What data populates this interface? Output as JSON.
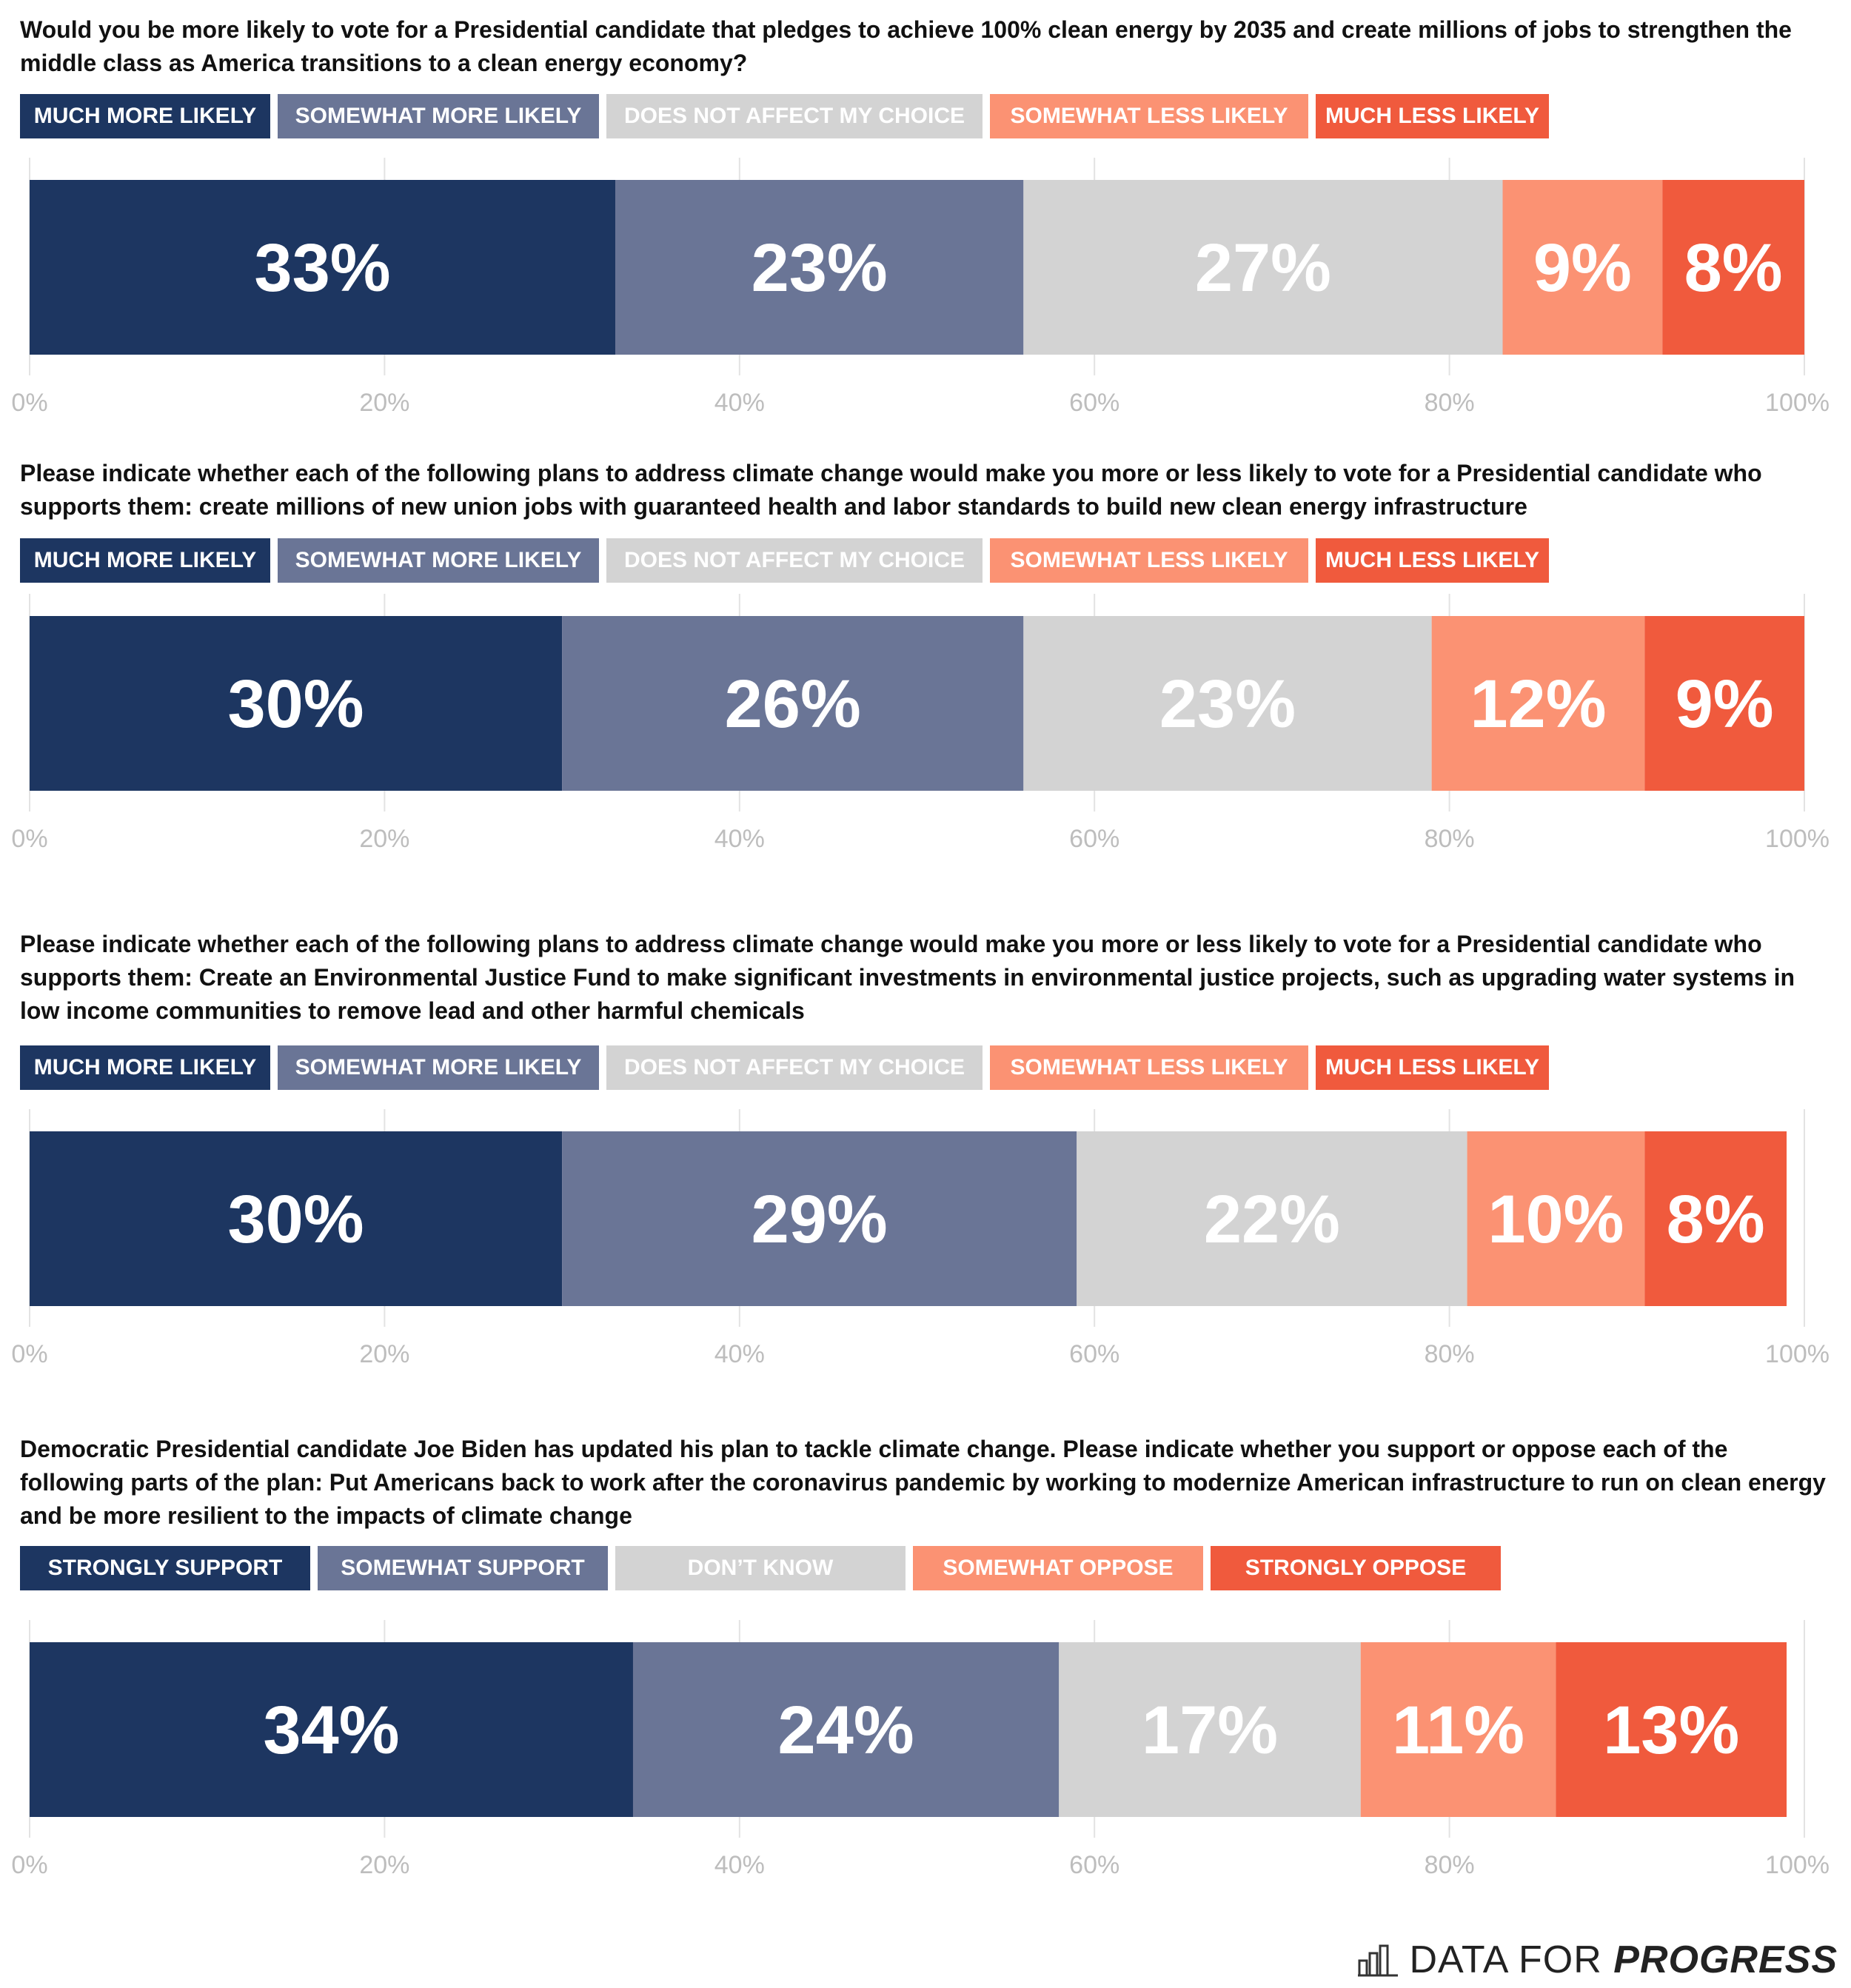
{
  "colors": {
    "much_more": "#1d3661",
    "somewhat_more": "#6a7596",
    "neutral": "#d3d3d3",
    "somewhat_less": "#fb9273",
    "much_less": "#f05a3d",
    "axis_text": "#bdbdbd",
    "gridline": "#e3e3e3"
  },
  "chart_data": [
    {
      "type": "bar",
      "orientation": "horizontal-stacked",
      "title": "Would you be more likely to vote for a Presidential candidate that pledges to achieve 100% clean energy by 2035 and create millions of jobs to strengthen the middle class as America transitions to a clean energy economy?",
      "series": [
        {
          "name": "MUCH MORE LIKELY",
          "value": 33,
          "label": "33%"
        },
        {
          "name": "SOMEWHAT MORE LIKELY",
          "value": 23,
          "label": "23%"
        },
        {
          "name": "DOES NOT AFFECT MY CHOICE",
          "value": 27,
          "label": "27%"
        },
        {
          "name": "SOMEWHAT LESS LIKELY",
          "value": 9,
          "label": "9%"
        },
        {
          "name": "MUCH LESS LIKELY",
          "value": 8,
          "label": "8%"
        }
      ],
      "xlim": [
        0,
        100
      ],
      "ticks": [
        "0%",
        "20%",
        "40%",
        "60%",
        "80%",
        "100%"
      ]
    },
    {
      "type": "bar",
      "orientation": "horizontal-stacked",
      "title": "Please indicate whether each of the following plans to address climate change would make you more or less likely to vote for a Presidential candidate who supports them: create millions of new union jobs with guaranteed health and labor standards to build new clean energy infrastructure",
      "series": [
        {
          "name": "MUCH MORE LIKELY",
          "value": 30,
          "label": "30%"
        },
        {
          "name": "SOMEWHAT MORE LIKELY",
          "value": 26,
          "label": "26%"
        },
        {
          "name": "DOES NOT AFFECT MY CHOICE",
          "value": 23,
          "label": "23%"
        },
        {
          "name": "SOMEWHAT LESS LIKELY",
          "value": 12,
          "label": "12%"
        },
        {
          "name": "MUCH LESS LIKELY",
          "value": 9,
          "label": "9%"
        }
      ],
      "xlim": [
        0,
        100
      ],
      "ticks": [
        "0%",
        "20%",
        "40%",
        "60%",
        "80%",
        "100%"
      ]
    },
    {
      "type": "bar",
      "orientation": "horizontal-stacked",
      "title": "Please indicate whether each of the following plans to address climate change would make you more or less likely to vote for a Presidential candidate who supports them: Create an Environmental Justice Fund to make significant investments in environmental justice projects, such as upgrading water systems in low income communities to remove lead and other harmful chemicals",
      "series": [
        {
          "name": "MUCH MORE LIKELY",
          "value": 30,
          "label": "30%"
        },
        {
          "name": "SOMEWHAT MORE LIKELY",
          "value": 29,
          "label": "29%"
        },
        {
          "name": "DOES NOT AFFECT MY CHOICE",
          "value": 22,
          "label": "22%"
        },
        {
          "name": "SOMEWHAT LESS LIKELY",
          "value": 10,
          "label": "10%"
        },
        {
          "name": "MUCH LESS LIKELY",
          "value": 8,
          "label": "8%"
        }
      ],
      "xlim": [
        0,
        100
      ],
      "ticks": [
        "0%",
        "20%",
        "40%",
        "60%",
        "80%",
        "100%"
      ]
    },
    {
      "type": "bar",
      "orientation": "horizontal-stacked",
      "title": "Democratic Presidential candidate Joe Biden has updated his plan to tackle climate change. Please indicate whether you support or oppose each of the following parts of the plan: Put Americans back to work after the coronavirus pandemic by working to modernize American infrastructure to run on clean energy and be more resilient to the impacts of climate change",
      "series": [
        {
          "name": "STRONGLY SUPPORT",
          "value": 34,
          "label": "34%"
        },
        {
          "name": "SOMEWHAT SUPPORT",
          "value": 24,
          "label": "24%"
        },
        {
          "name": "DON’T KNOW",
          "value": 17,
          "label": "17%"
        },
        {
          "name": "SOMEWHAT OPPOSE",
          "value": 11,
          "label": "11%"
        },
        {
          "name": "STRONGLY OPPOSE",
          "value": 13,
          "label": "13%"
        }
      ],
      "xlim": [
        0,
        100
      ],
      "ticks": [
        "0%",
        "20%",
        "40%",
        "60%",
        "80%",
        "100%"
      ]
    }
  ],
  "footer": {
    "brand_light": "DATA FOR",
    "brand_bold": "PROGRESS",
    "logo_icon": "bar-chart-icon"
  }
}
